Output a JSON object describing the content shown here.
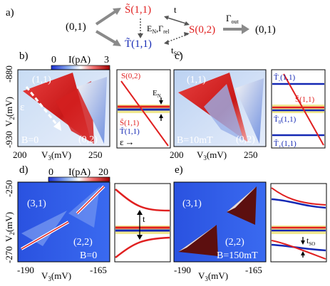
{
  "colors": {
    "red": "#e02020",
    "blue": "#1428b4",
    "yellow": "#f0e890",
    "grey": "#8a8a8a",
    "heat_bg_a": "#a8c8f0",
    "heat_bg_b": "#2a5ad8"
  },
  "panel_a": {
    "label": "a)",
    "state_01_left": "(0,1)",
    "state_S11": "S̃(1,1)",
    "state_T11": "T̃(1,1)",
    "state_S02": "S(0,2)",
    "state_01_right": "(0,1)",
    "arrow_t": "t",
    "arrow_en_rel": "E",
    "en_sub": "N",
    "gamma_rel": ",Γ",
    "rel_sub": "rel",
    "arrow_tso": "t",
    "tso_sub": "SO",
    "gamma_out": "Γ",
    "out_sub": "out"
  },
  "colorbar_top": {
    "title": "I(pA)",
    "min": "0",
    "max": "3"
  },
  "colorbar_bottom": {
    "title": "I(pA)",
    "min": "0",
    "max": "20"
  },
  "panel_b": {
    "label": "b)",
    "ylabel": "V",
    "ylabel_sub": "2",
    "ylabel_unit": "(mV)",
    "ytick_top": "-880",
    "ytick_bottom": "-930",
    "xlabel": "V",
    "xlabel_sub": "3",
    "xlabel_unit": "(mV)",
    "xtick_left": "200",
    "xtick_right": "250",
    "region_11": "(1,1)",
    "region_02": "(0,2)",
    "epsilon": "ε",
    "field": "B=0"
  },
  "panel_b_diagram": {
    "S02": "S(0,2)",
    "EN": "E",
    "EN_sub": "N",
    "S11": "S̃(1,1)",
    "T11": "T̃(1,1)",
    "epsilon": "ε",
    "epsilon_arrow": "→"
  },
  "panel_c": {
    "label": "c)",
    "region_11": "(1,1)",
    "region_02": "(0,2)",
    "field": "B=10mT",
    "xtick_left": "200",
    "xtick_right": "250",
    "xlabel": "V",
    "xlabel_sub": "3",
    "xlabel_unit": "(mV)"
  },
  "panel_c_diagram": {
    "Tminus": "T̃",
    "Tminus_sub": "-",
    "Tminus_state": "(1,1)",
    "S11": "S̃(1,1)",
    "T0": "T̃",
    "T0_sub": "0",
    "T0_state": "(1,1)",
    "Tplus": "T̃",
    "Tplus_sub": "+",
    "Tplus_state": "(1,1)"
  },
  "panel_d": {
    "label": "d)",
    "ylabel": "V",
    "ylabel_sub": "2",
    "ylabel_unit": "(mV)",
    "ytick_top": "-250",
    "ytick_bottom": "-270",
    "xlabel": "V",
    "xlabel_sub": "3",
    "xlabel_unit": "(mV)",
    "xtick_left": "-190",
    "xtick_right": "-165",
    "region_31": "(3,1)",
    "region_22": "(2,2)",
    "field": "B=0"
  },
  "panel_d_diagram": {
    "t": "t"
  },
  "panel_e": {
    "label": "e)",
    "region_31": "(3,1)",
    "region_22": "(2,2)",
    "field": "B=150mT",
    "xtick_left": "-190",
    "xtick_right": "-165",
    "xlabel": "V",
    "xlabel_sub": "3",
    "xlabel_unit": "(mV)"
  },
  "panel_e_diagram": {
    "tso": "t",
    "tso_sub": "SO"
  }
}
